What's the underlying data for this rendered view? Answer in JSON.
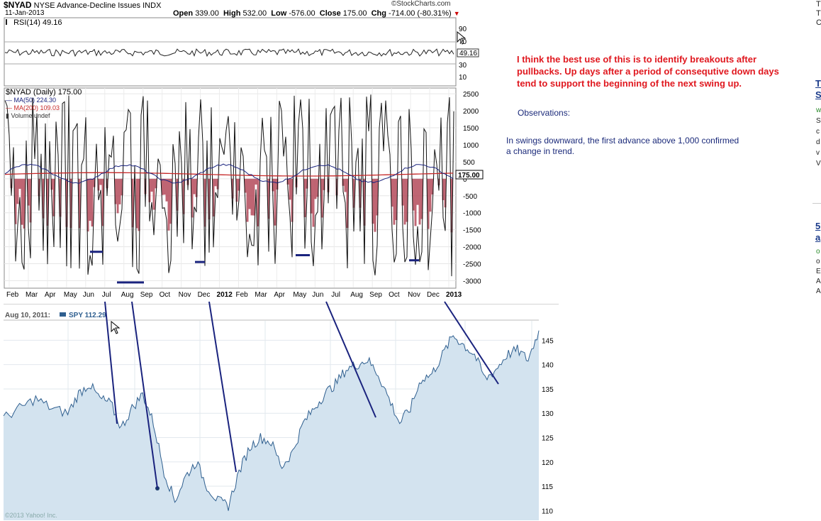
{
  "header": {
    "symbol": "$NYAD",
    "name": "NYSE Advance-Decline Issues",
    "exchange": "INDX",
    "date": "11-Jan-2013",
    "watermark": "©StockCharts.com",
    "open_label": "Open",
    "open": "339.00",
    "high_label": "High",
    "high": "532.00",
    "low_label": "Low",
    "low": "-576.00",
    "close_label": "Close",
    "close": "175.00",
    "chg_label": "Chg",
    "chg": "-714.00 (-80.31%)"
  },
  "rsi_panel": {
    "legend": "RSI(14) 49.16",
    "last_value": "49.16",
    "levels": [
      "90",
      "70",
      "30",
      "10"
    ]
  },
  "main_panel": {
    "legend_title": "$NYAD (Daily) 175.00",
    "ma50": "MA(50) 224.30",
    "ma200": "MA(200) 109.03",
    "volume": "Volume undef",
    "last_value_tag": "175.00"
  },
  "spy_panel": {
    "date_label": "Aug 10, 2011:",
    "series_label": "SPY 112.29",
    "footer": "©2013 Yahoo! Inc."
  },
  "notes": {
    "main": "I think the best use of this is to identify breakouts after pullbacks. Up days after a period of consequtive down days tend to support the beginning of the next swing up.",
    "observations": "Observations:",
    "observation_1": "In swings downward, the first advance above 1,000 confirmed a change in trend."
  },
  "right_cut": {
    "top": [
      "T",
      "T",
      "C"
    ],
    "link1": [
      "T",
      "S"
    ],
    "block1": [
      "w",
      "S",
      "c",
      "d",
      "v",
      "V"
    ],
    "link2": [
      "5",
      "a"
    ],
    "block2": [
      "o",
      "o",
      "E",
      "A",
      "A"
    ]
  },
  "colors": {
    "up": "#111111",
    "down_fill": "#b44a5a",
    "ma50": "#1a237e",
    "ma200": "#c62828",
    "spy_fill": "#d3e3ef",
    "spy_line": "#2f5f8f",
    "trend": "#1a237e",
    "note_red": "#e0181f"
  },
  "chart_data": [
    {
      "type": "line",
      "title": "RSI(14) 49.16",
      "ylim": [
        0,
        100
      ],
      "yticks": [
        10,
        30,
        70,
        90
      ],
      "series": [
        {
          "name": "RSI(14)",
          "last": 49.16
        }
      ]
    },
    {
      "type": "bar",
      "title": "$NYAD (Daily) 175.00",
      "x_tick_labels": [
        "Feb",
        "Mar",
        "Apr",
        "May",
        "Jun",
        "Jul",
        "Aug",
        "Sep",
        "Oct",
        "Nov",
        "Dec",
        "2012",
        "Feb",
        "Mar",
        "Apr",
        "May",
        "Jun",
        "Jul",
        "Aug",
        "Sep",
        "Oct",
        "Nov",
        "Dec",
        "2013"
      ],
      "yticks": [
        -3000,
        -2500,
        -2000,
        -1500,
        -1000,
        -500,
        0,
        500,
        1000,
        1500,
        2000,
        2500
      ],
      "ylim": [
        -3200,
        2650
      ],
      "series": [
        {
          "name": "$NYAD (Daily)",
          "last": 175.0,
          "open": 339.0,
          "high": 532.0,
          "low": -576.0
        },
        {
          "name": "MA(50)",
          "last": 224.3
        },
        {
          "name": "MA(200)",
          "last": 109.03
        }
      ]
    },
    {
      "type": "area",
      "title": "SPY 112.29",
      "date_label": "Aug 10, 2011:",
      "yticks": [
        110,
        115,
        120,
        125,
        130,
        135,
        140,
        145
      ],
      "ylim": [
        108,
        149
      ],
      "series": [
        {
          "name": "SPY",
          "x": [
            0,
            0.03,
            0.06,
            0.09,
            0.12,
            0.14,
            0.16,
            0.18,
            0.2,
            0.22,
            0.24,
            0.26,
            0.28,
            0.3,
            0.32,
            0.34,
            0.36,
            0.38,
            0.4,
            0.42,
            0.44,
            0.46,
            0.48,
            0.5,
            0.52,
            0.54,
            0.56,
            0.58,
            0.6,
            0.62,
            0.64,
            0.66,
            0.68,
            0.7,
            0.72,
            0.74,
            0.76,
            0.78,
            0.8,
            0.82,
            0.84,
            0.86,
            0.88,
            0.9,
            0.92,
            0.94,
            0.96,
            0.98,
            1.0
          ],
          "values": [
            129,
            131,
            133,
            131,
            130,
            134,
            136,
            133,
            132,
            127,
            131,
            134,
            128,
            118,
            112,
            117,
            120,
            115,
            112,
            111,
            118,
            123,
            125,
            124,
            119,
            122,
            128,
            131,
            134,
            136,
            139,
            140,
            141,
            138,
            133,
            128,
            131,
            137,
            138,
            142,
            146,
            144,
            142,
            137,
            139,
            142,
            143,
            141,
            147
          ]
        }
      ]
    }
  ]
}
